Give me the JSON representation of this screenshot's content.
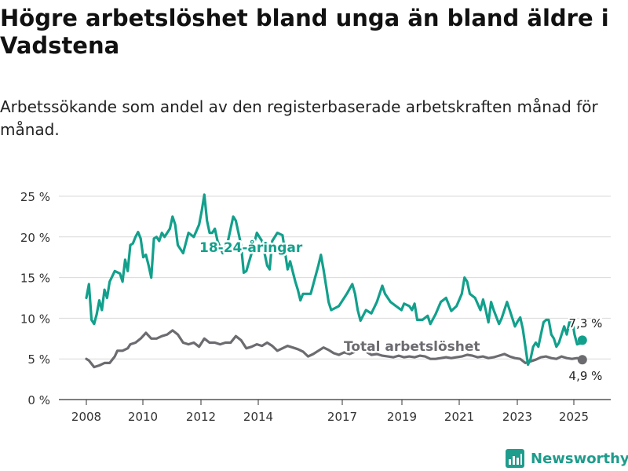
{
  "title": "Högre arbetslöshet bland unga än bland äldre i Vadstena",
  "subtitle": "Arbetssökande som andel av den registerbaserade arbetskraften månad för månad.",
  "brand": "Newsworthy",
  "colors": {
    "youth": "#12a08c",
    "total": "#6b6b70",
    "grid": "#d9d9d9",
    "axis": "#333333",
    "brand": "#1e9c8c"
  },
  "chart_data": {
    "type": "line",
    "title": "",
    "xlabel": "",
    "ylabel": "",
    "ylim": [
      0,
      25
    ],
    "y_ticks": [
      0,
      5,
      10,
      15,
      20,
      25
    ],
    "y_tick_labels": [
      "0 %",
      "5 %",
      "10 %",
      "15 %",
      "20 %",
      "25 %"
    ],
    "x_ticks": [
      2008,
      2010,
      2012,
      2014,
      2017,
      2019,
      2021,
      2023,
      2025
    ],
    "x_tick_labels": [
      "2008",
      "2010",
      "2012",
      "2014",
      "2017",
      "2019",
      "2021",
      "2023",
      "2025"
    ],
    "grid": true,
    "series": [
      {
        "name": "18-24-åringar",
        "end_label": "7,3 %",
        "points": [
          [
            "2008-01",
            12.5
          ],
          [
            "2008-02",
            14.2
          ],
          [
            "2008-03",
            9.8
          ],
          [
            "2008-04",
            9.3
          ],
          [
            "2008-05",
            10.5
          ],
          [
            "2008-06",
            12.2
          ],
          [
            "2008-07",
            11.0
          ],
          [
            "2008-08",
            13.5
          ],
          [
            "2008-09",
            12.5
          ],
          [
            "2008-10",
            14.5
          ],
          [
            "2008-12",
            15.8
          ],
          [
            "2009-02",
            15.5
          ],
          [
            "2009-03",
            14.5
          ],
          [
            "2009-04",
            17.2
          ],
          [
            "2009-05",
            15.8
          ],
          [
            "2009-06",
            19.0
          ],
          [
            "2009-07",
            19.2
          ],
          [
            "2009-08",
            20.0
          ],
          [
            "2009-09",
            20.6
          ],
          [
            "2009-10",
            19.8
          ],
          [
            "2009-11",
            17.5
          ],
          [
            "2009-12",
            17.8
          ],
          [
            "2010-01",
            16.5
          ],
          [
            "2010-02",
            15.0
          ],
          [
            "2010-03",
            19.8
          ],
          [
            "2010-04",
            20.0
          ],
          [
            "2010-05",
            19.5
          ],
          [
            "2010-06",
            20.5
          ],
          [
            "2010-07",
            20.0
          ],
          [
            "2010-08",
            20.5
          ],
          [
            "2010-09",
            21.0
          ],
          [
            "2010-10",
            22.5
          ],
          [
            "2010-11",
            21.5
          ],
          [
            "2010-12",
            19.0
          ],
          [
            "2011-02",
            18.0
          ],
          [
            "2011-04",
            20.5
          ],
          [
            "2011-06",
            20.0
          ],
          [
            "2011-08",
            21.5
          ],
          [
            "2011-09",
            23.2
          ],
          [
            "2011-10",
            25.2
          ],
          [
            "2011-11",
            22.0
          ],
          [
            "2011-12",
            20.5
          ],
          [
            "2012-01",
            20.5
          ],
          [
            "2012-02",
            21.0
          ],
          [
            "2012-03",
            19.5
          ],
          [
            "2012-05",
            18.0
          ],
          [
            "2012-07",
            19.5
          ],
          [
            "2012-09",
            22.5
          ],
          [
            "2012-10",
            22.0
          ],
          [
            "2012-11",
            20.5
          ],
          [
            "2012-12",
            19.0
          ],
          [
            "2013-01",
            15.6
          ],
          [
            "2013-02",
            15.8
          ],
          [
            "2013-04",
            18.0
          ],
          [
            "2013-06",
            20.5
          ],
          [
            "2013-08",
            19.5
          ],
          [
            "2013-09",
            18.0
          ],
          [
            "2013-10",
            16.5
          ],
          [
            "2013-11",
            16.0
          ],
          [
            "2013-12",
            19.5
          ],
          [
            "2014-02",
            20.5
          ],
          [
            "2014-04",
            20.2
          ],
          [
            "2014-06",
            16.0
          ],
          [
            "2014-07",
            17.0
          ],
          [
            "2014-09",
            14.5
          ],
          [
            "2014-10",
            13.5
          ],
          [
            "2014-11",
            12.2
          ],
          [
            "2014-12",
            13.0
          ],
          [
            "2015-03",
            13.0
          ],
          [
            "2015-06",
            16.5
          ],
          [
            "2015-07",
            17.8
          ],
          [
            "2015-08",
            16.0
          ],
          [
            "2015-09",
            14.0
          ],
          [
            "2015-10",
            12.0
          ],
          [
            "2015-11",
            11.0
          ],
          [
            "2016-02",
            11.5
          ],
          [
            "2016-05",
            13.0
          ],
          [
            "2016-07",
            14.2
          ],
          [
            "2016-08",
            13.0
          ],
          [
            "2016-09",
            11.0
          ],
          [
            "2016-10",
            9.7
          ],
          [
            "2016-12",
            11.0
          ],
          [
            "2017-02",
            10.6
          ],
          [
            "2017-04",
            12.0
          ],
          [
            "2017-06",
            14.0
          ],
          [
            "2017-07",
            13.0
          ],
          [
            "2017-09",
            12.0
          ],
          [
            "2017-11",
            11.5
          ],
          [
            "2018-01",
            11.0
          ],
          [
            "2018-02",
            11.8
          ],
          [
            "2018-04",
            11.5
          ],
          [
            "2018-05",
            11.0
          ],
          [
            "2018-06",
            11.8
          ],
          [
            "2018-07",
            9.8
          ],
          [
            "2018-09",
            9.8
          ],
          [
            "2018-11",
            10.3
          ],
          [
            "2018-12",
            9.3
          ],
          [
            "2019-02",
            10.5
          ],
          [
            "2019-04",
            12.0
          ],
          [
            "2019-06",
            12.5
          ],
          [
            "2019-08",
            10.9
          ],
          [
            "2019-10",
            11.5
          ],
          [
            "2019-12",
            13.0
          ],
          [
            "2020-01",
            15.0
          ],
          [
            "2020-02",
            14.5
          ],
          [
            "2020-03",
            13.0
          ],
          [
            "2020-05",
            12.5
          ],
          [
            "2020-07",
            11.0
          ],
          [
            "2020-08",
            12.3
          ],
          [
            "2020-09",
            11.0
          ],
          [
            "2020-10",
            9.5
          ],
          [
            "2020-11",
            12.0
          ],
          [
            "2020-12",
            11.0
          ],
          [
            "2021-02",
            9.3
          ],
          [
            "2021-03",
            10.0
          ],
          [
            "2021-05",
            12.0
          ],
          [
            "2021-06",
            11.0
          ],
          [
            "2021-08",
            9.0
          ],
          [
            "2021-09",
            9.6
          ],
          [
            "2021-10",
            10.1
          ],
          [
            "2021-11",
            8.7
          ],
          [
            "2022-01",
            4.3
          ],
          [
            "2022-02",
            5.0
          ],
          [
            "2022-03",
            6.5
          ],
          [
            "2022-04",
            7.0
          ],
          [
            "2022-05",
            6.5
          ],
          [
            "2022-06",
            8.0
          ],
          [
            "2022-07",
            9.5
          ],
          [
            "2022-08",
            9.8
          ],
          [
            "2022-09",
            9.8
          ],
          [
            "2022-10",
            8.0
          ],
          [
            "2022-11",
            7.5
          ],
          [
            "2022-12",
            6.5
          ],
          [
            "2023-01",
            7.0
          ],
          [
            "2023-02",
            8.0
          ],
          [
            "2023-03",
            9.0
          ],
          [
            "2023-04",
            8.0
          ],
          [
            "2023-05",
            9.5
          ],
          [
            "2023-06",
            10.0
          ],
          [
            "2023-07",
            8.0
          ],
          [
            "2023-08",
            6.8
          ],
          [
            "2023-09",
            6.9
          ],
          [
            "2023-10",
            7.3
          ]
        ]
      },
      {
        "name": "Total arbetslöshet",
        "end_label": "4,9 %",
        "points": [
          [
            "2008-01",
            5.0
          ],
          [
            "2008-02",
            4.8
          ],
          [
            "2008-04",
            4.0
          ],
          [
            "2008-06",
            4.2
          ],
          [
            "2008-08",
            4.5
          ],
          [
            "2008-10",
            4.5
          ],
          [
            "2008-12",
            5.3
          ],
          [
            "2009-01",
            6.0
          ],
          [
            "2009-03",
            6.0
          ],
          [
            "2009-05",
            6.3
          ],
          [
            "2009-06",
            6.8
          ],
          [
            "2009-08",
            7.0
          ],
          [
            "2009-10",
            7.5
          ],
          [
            "2009-12",
            8.2
          ],
          [
            "2010-02",
            7.5
          ],
          [
            "2010-04",
            7.5
          ],
          [
            "2010-06",
            7.8
          ],
          [
            "2010-08",
            8.0
          ],
          [
            "2010-10",
            8.5
          ],
          [
            "2010-12",
            8.0
          ],
          [
            "2011-02",
            7.0
          ],
          [
            "2011-04",
            6.8
          ],
          [
            "2011-06",
            7.0
          ],
          [
            "2011-08",
            6.5
          ],
          [
            "2011-10",
            7.5
          ],
          [
            "2011-12",
            7.0
          ],
          [
            "2012-02",
            7.0
          ],
          [
            "2012-04",
            6.8
          ],
          [
            "2012-06",
            7.0
          ],
          [
            "2012-08",
            7.0
          ],
          [
            "2012-10",
            7.8
          ],
          [
            "2012-12",
            7.3
          ],
          [
            "2013-02",
            6.3
          ],
          [
            "2013-04",
            6.5
          ],
          [
            "2013-06",
            6.8
          ],
          [
            "2013-08",
            6.6
          ],
          [
            "2013-10",
            7.0
          ],
          [
            "2013-12",
            6.6
          ],
          [
            "2014-02",
            6.0
          ],
          [
            "2014-04",
            6.3
          ],
          [
            "2014-06",
            6.6
          ],
          [
            "2014-08",
            6.4
          ],
          [
            "2014-10",
            6.2
          ],
          [
            "2014-12",
            5.9
          ],
          [
            "2015-02",
            5.3
          ],
          [
            "2015-04",
            5.6
          ],
          [
            "2015-06",
            6.0
          ],
          [
            "2015-08",
            6.4
          ],
          [
            "2015-10",
            6.1
          ],
          [
            "2015-12",
            5.7
          ],
          [
            "2016-02",
            5.5
          ],
          [
            "2016-04",
            5.8
          ],
          [
            "2016-06",
            5.6
          ],
          [
            "2016-08",
            5.9
          ],
          [
            "2016-10",
            6.2
          ],
          [
            "2016-12",
            5.9
          ],
          [
            "2017-02",
            5.5
          ],
          [
            "2017-04",
            5.6
          ],
          [
            "2017-06",
            5.4
          ],
          [
            "2017-08",
            5.3
          ],
          [
            "2017-10",
            5.2
          ],
          [
            "2017-12",
            5.4
          ],
          [
            "2018-02",
            5.2
          ],
          [
            "2018-04",
            5.3
          ],
          [
            "2018-06",
            5.2
          ],
          [
            "2018-08",
            5.4
          ],
          [
            "2018-10",
            5.3
          ],
          [
            "2018-12",
            5.0
          ],
          [
            "2019-02",
            5.0
          ],
          [
            "2019-04",
            5.1
          ],
          [
            "2019-06",
            5.2
          ],
          [
            "2019-08",
            5.1
          ],
          [
            "2019-10",
            5.2
          ],
          [
            "2019-12",
            5.3
          ],
          [
            "2020-02",
            5.5
          ],
          [
            "2020-04",
            5.4
          ],
          [
            "2020-06",
            5.2
          ],
          [
            "2020-08",
            5.3
          ],
          [
            "2020-10",
            5.1
          ],
          [
            "2020-12",
            5.2
          ],
          [
            "2021-02",
            5.4
          ],
          [
            "2021-04",
            5.6
          ],
          [
            "2021-06",
            5.3
          ],
          [
            "2021-08",
            5.1
          ],
          [
            "2021-10",
            5.0
          ],
          [
            "2021-12",
            4.5
          ],
          [
            "2022-02",
            4.7
          ],
          [
            "2022-04",
            4.9
          ],
          [
            "2022-06",
            5.2
          ],
          [
            "2022-08",
            5.3
          ],
          [
            "2022-10",
            5.1
          ],
          [
            "2022-12",
            5.0
          ],
          [
            "2023-02",
            5.3
          ],
          [
            "2023-04",
            5.1
          ],
          [
            "2023-06",
            5.0
          ],
          [
            "2023-08",
            5.1
          ],
          [
            "2023-10",
            4.9
          ]
        ]
      }
    ]
  }
}
